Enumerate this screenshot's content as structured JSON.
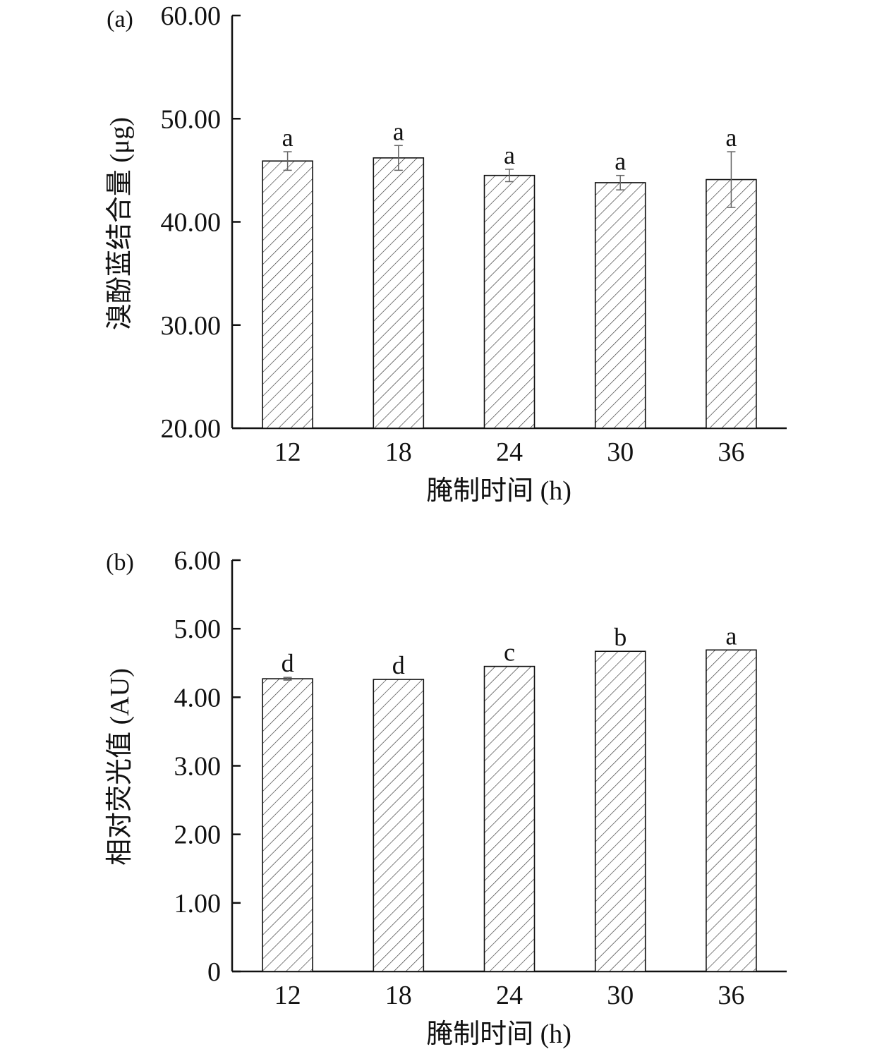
{
  "chart_data": [
    {
      "type": "bar",
      "panel_label": "(a)",
      "categories": [
        "12",
        "18",
        "24",
        "30",
        "36"
      ],
      "values": [
        45.9,
        46.2,
        44.5,
        43.8,
        44.1
      ],
      "errors": [
        0.9,
        1.2,
        0.6,
        0.7,
        2.7
      ],
      "letters": [
        "a",
        "a",
        "a",
        "a",
        "a"
      ],
      "xlabel": "腌制时间 (h)",
      "ylabel": "溴酚蓝结合量 (μg)",
      "ylim": [
        20,
        60
      ],
      "yticks": [
        "20.00",
        "30.00",
        "40.00",
        "50.00",
        "60.00"
      ],
      "grid": false,
      "bar_fill": "hatched"
    },
    {
      "type": "bar",
      "panel_label": "(b)",
      "categories": [
        "12",
        "18",
        "24",
        "30",
        "36"
      ],
      "values": [
        4.27,
        4.26,
        4.45,
        4.67,
        4.69
      ],
      "errors": [
        0.02,
        0.0,
        0.0,
        0.0,
        0.0
      ],
      "letters": [
        "d",
        "d",
        "c",
        "b",
        "a"
      ],
      "xlabel": "腌制时间 (h)",
      "ylabel": "相对荧光值 (AU)",
      "ylim": [
        0,
        6
      ],
      "yticks": [
        "0",
        "1.00",
        "2.00",
        "3.00",
        "4.00",
        "5.00",
        "6.00"
      ],
      "grid": false,
      "bar_fill": "hatched"
    }
  ],
  "colors": {
    "axis": "#111111",
    "bar_stroke": "#111111",
    "hatch": "#333333",
    "bar_bg": "#ffffff",
    "error_bar": "#666666"
  }
}
